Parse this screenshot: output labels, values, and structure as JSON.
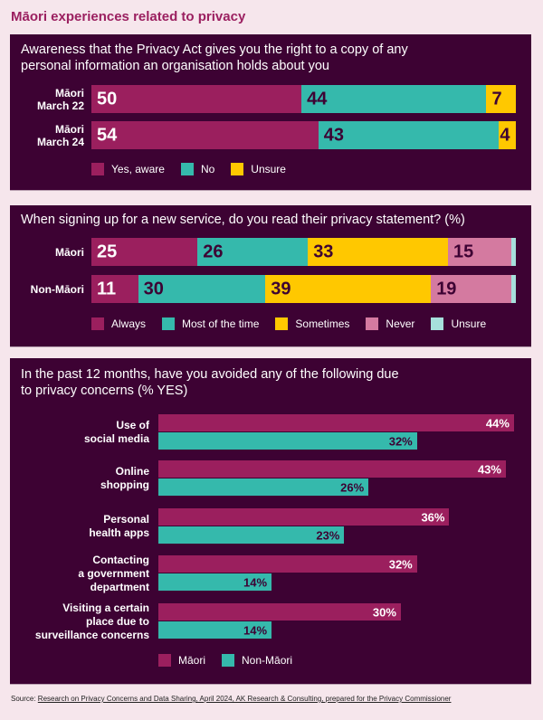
{
  "title": "Māori experiences related to privacy",
  "colors": {
    "maori": "#9b1f5e",
    "teal": "#35b9ac",
    "yellow": "#ffc800",
    "pink": "#d47aa0",
    "lightteal": "#a6e0dc",
    "darkText": "#3d0233",
    "panelBg": "#3d0233"
  },
  "chart_data": [
    {
      "type": "bar",
      "stacked": true,
      "orientation": "horizontal",
      "title": "Awareness that the Privacy Act gives you the right to a copy of any personal information an organisation holds about you",
      "categories": [
        "Māori March 22",
        "Māori March 24"
      ],
      "category_lines": [
        [
          "Māori",
          "March 22"
        ],
        [
          "Māori",
          "March 24"
        ]
      ],
      "series": [
        {
          "name": "Yes, aware",
          "color": "#9b1f5e",
          "label_color": "#ffffff",
          "values": [
            50,
            54
          ]
        },
        {
          "name": "No",
          "color": "#35b9ac",
          "label_color": "#3d0233",
          "values": [
            44,
            43
          ]
        },
        {
          "name": "Unsure",
          "color": "#ffc800",
          "label_color": "#3d0233",
          "values": [
            7,
            4
          ]
        }
      ],
      "legend": "bottom"
    },
    {
      "type": "bar",
      "stacked": true,
      "orientation": "horizontal",
      "title": "When signing up for a new service, do you read their privacy statement? (%)",
      "categories": [
        "Māori",
        "Non-Māori"
      ],
      "category_lines": [
        [
          "Māori"
        ],
        [
          "Non-Māori"
        ]
      ],
      "series": [
        {
          "name": "Always",
          "color": "#9b1f5e",
          "label_color": "#ffffff",
          "values": [
            25,
            11
          ]
        },
        {
          "name": "Most of the time",
          "color": "#35b9ac",
          "label_color": "#3d0233",
          "values": [
            26,
            30
          ]
        },
        {
          "name": "Sometimes",
          "color": "#ffc800",
          "label_color": "#3d0233",
          "values": [
            33,
            39
          ]
        },
        {
          "name": "Never",
          "color": "#d47aa0",
          "label_color": "#3d0233",
          "values": [
            15,
            19
          ]
        },
        {
          "name": "Unsure",
          "color": "#a6e0dc",
          "label_color": "#3d0233",
          "values": [
            1,
            1
          ],
          "show_label": false
        }
      ],
      "legend": "bottom"
    },
    {
      "type": "bar",
      "orientation": "horizontal",
      "title": "In the past 12 months, have you avoided any of the following due to privacy concerns (% YES)",
      "title_lines": [
        "In the past 12 months, have you avoided any of the following due",
        "to privacy concerns (% YES)"
      ],
      "categories": [
        "Use of social media",
        "Online shopping",
        "Personal health apps",
        "Contacting a government department",
        "Visiting a certain place due to surveillance concerns"
      ],
      "category_lines": [
        [
          "Use of",
          "social media"
        ],
        [
          "Online",
          "shopping"
        ],
        [
          "Personal",
          "health apps"
        ],
        [
          "Contacting",
          "a government",
          "department"
        ],
        [
          "Visiting a certain",
          "place due to",
          "surveillance concerns"
        ]
      ],
      "series": [
        {
          "name": "Māori",
          "color": "#9b1f5e",
          "label_color": "#ffffff",
          "values": [
            44,
            43,
            36,
            32,
            30
          ]
        },
        {
          "name": "Non-Māori",
          "color": "#35b9ac",
          "label_color": "#3d0233",
          "values": [
            32,
            26,
            23,
            14,
            14
          ]
        }
      ],
      "value_suffix": "%",
      "legend": "bottom"
    }
  ],
  "source": {
    "prefix": "Source: ",
    "link_text": "Research on Privacy Concerns and Data Sharing, April 2024, AK Research & Consulting, prepared for the Privacy Commissioner"
  }
}
